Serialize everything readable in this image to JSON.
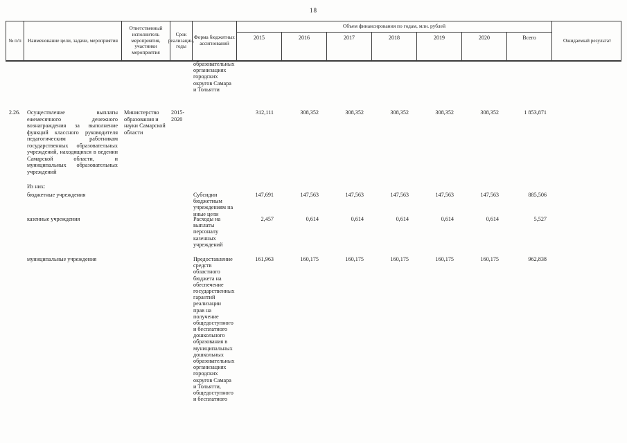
{
  "page_number": "18",
  "table": {
    "headers": {
      "num": "№ п/п",
      "name": "Наименование цели, задачи, мероприятия",
      "executor": "Ответственный исполнитель мероприятия, участники мероприятия",
      "term": "Срок реализации, годы",
      "form": "Форма бюджетных ассигнований",
      "finance_group": "Объем финансирования по годам, млн. рублей",
      "years": [
        "2015",
        "2016",
        "2017",
        "2018",
        "2019",
        "2020",
        "Всего"
      ],
      "result": "Ожидаемый результат"
    },
    "rows": [
      {
        "num": "",
        "name": "",
        "executor": "",
        "term": "",
        "form": "образовательных организациях городских округов Самара и Тольятти",
        "result": ""
      },
      {
        "num": "2.26.",
        "name": "Осуществление выплаты ежемесячного денежного вознаграждения за выполнение функций классного руководителя педагогическим работникам государственных образовательных учреждений, находящихся в ведении Самарской области, и муниципальных образовательных учреждений",
        "executor": "Министерство образования и науки Самарской области",
        "term": "2015-2020",
        "form": "",
        "values": [
          "312,111",
          "308,352",
          "308,352",
          "308,352",
          "308,352",
          "308,352",
          "1 853,871"
        ],
        "result": ""
      },
      {
        "num": "",
        "name": "Из них:",
        "executor": "",
        "term": "",
        "form": "",
        "result": ""
      },
      {
        "num": "",
        "name": "бюджетные учреждения",
        "executor": "",
        "term": "",
        "form": "Субсидии бюджетным учреждениям на иные цели",
        "values": [
          "147,691",
          "147,563",
          "147,563",
          "147,563",
          "147,563",
          "147,563",
          "885,506"
        ],
        "result": ""
      },
      {
        "num": "",
        "name": "казенные учреждения",
        "executor": "",
        "term": "",
        "form": "Расходы на выплаты персоналу казенных учреждений",
        "values": [
          "2,457",
          "0,614",
          "0,614",
          "0,614",
          "0,614",
          "0,614",
          "5,527"
        ],
        "result": ""
      },
      {
        "num": "",
        "name": "муниципальные учреждения",
        "executor": "",
        "term": "",
        "form": "Предоставление средств областного бюджета на обеспечение государственных гарантий реализации прав на получение общедоступного и бесплатного дошкольного образования в муниципальных дошкольных образовательных организациях городских округов Самара и Тольятти, общедоступного и бесплатного",
        "values": [
          "161,963",
          "160,175",
          "160,175",
          "160,175",
          "160,175",
          "160,175",
          "962,838"
        ],
        "result": ""
      }
    ]
  }
}
